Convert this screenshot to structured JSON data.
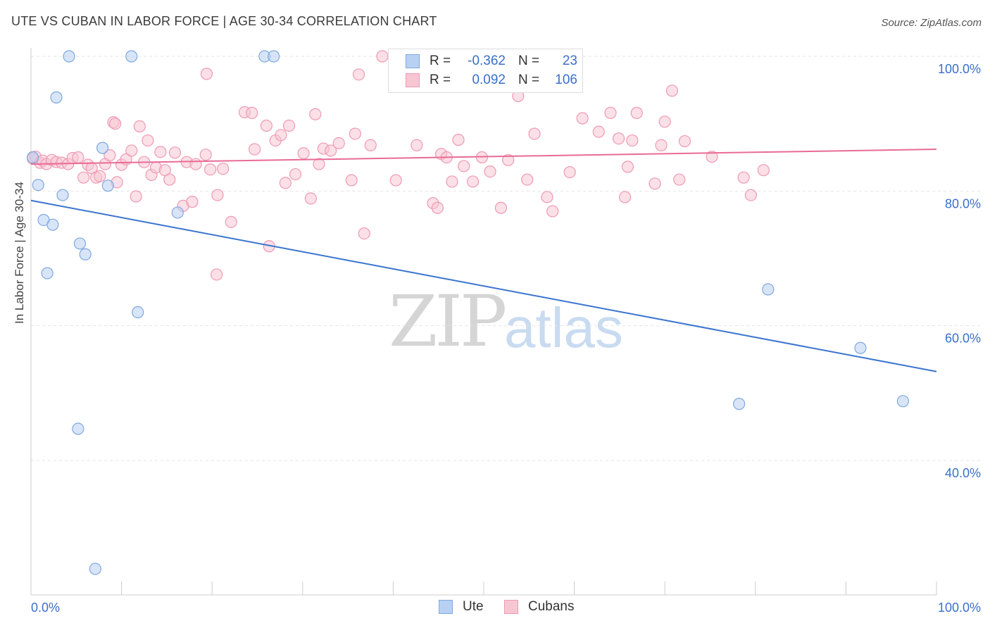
{
  "header": {
    "title": "UTE VS CUBAN IN LABOR FORCE | AGE 30-34 CORRELATION CHART",
    "source": "Source: ZipAtlas.com"
  },
  "watermark": {
    "zip": "ZIP",
    "atlas": "atlas"
  },
  "legend": {
    "r_label": "R =",
    "n_label": "N =",
    "series": [
      {
        "name": "Ute",
        "r": "-0.362",
        "n": "23"
      },
      {
        "name": "Cubans",
        "r": "0.092",
        "n": "106"
      }
    ]
  },
  "colors": {
    "ute_fill": "#b8d0f2",
    "ute_stroke": "#7fa8e0",
    "ute_line": "#3a74cf",
    "cuban_fill": "#f8c6d3",
    "cuban_stroke": "#ee9ab2",
    "cuban_line": "#e86b96",
    "tick_text": "#3a6fc9",
    "grid": "#e3e3e3"
  },
  "chart_data": {
    "type": "scatter",
    "title": "UTE VS CUBAN IN LABOR FORCE | AGE 30-34 CORRELATION CHART",
    "xlabel": "",
    "ylabel": "In Labor Force | Age 30-34",
    "xlim": [
      0,
      100
    ],
    "ylim": [
      20,
      104
    ],
    "x_tick_labels": [
      {
        "value": 0,
        "label": "0.0%"
      },
      {
        "value": 100,
        "label": "100.0%"
      }
    ],
    "y_tick_labels": [
      {
        "value": 100,
        "label": "100.0%"
      },
      {
        "value": 80,
        "label": "80.0%"
      },
      {
        "value": 60,
        "label": "60.0%"
      },
      {
        "value": 40,
        "label": "40.0%"
      }
    ],
    "series": [
      {
        "name": "Ute",
        "r": -0.362,
        "n": 23,
        "trend": {
          "x": [
            0,
            100
          ],
          "y": [
            78.6,
            53.2
          ]
        },
        "points": [
          [
            0.2,
            85.0
          ],
          [
            0.8,
            80.9
          ],
          [
            1.4,
            75.7
          ],
          [
            1.8,
            67.8
          ],
          [
            2.4,
            75.0
          ],
          [
            2.8,
            93.9
          ],
          [
            3.5,
            79.4
          ],
          [
            4.2,
            100.0
          ],
          [
            5.2,
            44.7
          ],
          [
            5.4,
            72.2
          ],
          [
            6.0,
            70.6
          ],
          [
            7.1,
            23.9
          ],
          [
            7.9,
            86.4
          ],
          [
            8.5,
            80.8
          ],
          [
            11.1,
            100.0
          ],
          [
            11.8,
            62.0
          ],
          [
            16.2,
            76.8
          ],
          [
            25.8,
            100.0
          ],
          [
            26.8,
            100.0
          ],
          [
            78.2,
            48.4
          ],
          [
            81.4,
            65.4
          ],
          [
            91.6,
            56.7
          ],
          [
            96.3,
            48.8
          ]
        ]
      },
      {
        "name": "Cubans",
        "r": 0.092,
        "n": 106,
        "trend": {
          "x": [
            0,
            100
          ],
          "y": [
            84.0,
            86.2
          ]
        },
        "points": [
          [
            0.2,
            84.8
          ],
          [
            0.5,
            85.1
          ],
          [
            1.0,
            84.2
          ],
          [
            1.3,
            84.5
          ],
          [
            1.7,
            84.0
          ],
          [
            2.3,
            84.6
          ],
          [
            2.8,
            84.3
          ],
          [
            3.4,
            84.2
          ],
          [
            4.1,
            84.0
          ],
          [
            4.6,
            84.9
          ],
          [
            5.2,
            85.0
          ],
          [
            5.8,
            82.0
          ],
          [
            6.3,
            83.9
          ],
          [
            6.7,
            83.4
          ],
          [
            7.2,
            82.0
          ],
          [
            7.6,
            82.2
          ],
          [
            8.2,
            84.0
          ],
          [
            8.7,
            85.3
          ],
          [
            9.1,
            90.2
          ],
          [
            9.5,
            81.3
          ],
          [
            10.0,
            83.9
          ],
          [
            10.5,
            84.7
          ],
          [
            11.1,
            86.0
          ],
          [
            11.6,
            79.2
          ],
          [
            12.0,
            89.6
          ],
          [
            12.5,
            84.3
          ],
          [
            12.9,
            87.5
          ],
          [
            13.3,
            82.4
          ],
          [
            13.8,
            83.5
          ],
          [
            14.3,
            85.8
          ],
          [
            14.8,
            83.1
          ],
          [
            15.3,
            81.7
          ],
          [
            15.9,
            85.7
          ],
          [
            16.8,
            77.8
          ],
          [
            17.2,
            84.3
          ],
          [
            17.8,
            78.4
          ],
          [
            18.2,
            84.0
          ],
          [
            19.3,
            85.4
          ],
          [
            19.8,
            83.2
          ],
          [
            20.6,
            79.4
          ],
          [
            21.2,
            83.3
          ],
          [
            22.1,
            75.4
          ],
          [
            23.6,
            91.7
          ],
          [
            24.4,
            91.6
          ],
          [
            24.7,
            86.2
          ],
          [
            26.0,
            89.7
          ],
          [
            27.0,
            87.5
          ],
          [
            27.6,
            88.3
          ],
          [
            28.1,
            81.2
          ],
          [
            28.5,
            89.7
          ],
          [
            29.2,
            82.5
          ],
          [
            30.1,
            85.6
          ],
          [
            30.9,
            78.9
          ],
          [
            31.8,
            84.0
          ],
          [
            32.3,
            86.3
          ],
          [
            33.1,
            86.0
          ],
          [
            34.0,
            87.1
          ],
          [
            35.4,
            81.6
          ],
          [
            35.8,
            88.5
          ],
          [
            36.8,
            73.7
          ],
          [
            37.5,
            86.8
          ],
          [
            38.8,
            100.0
          ],
          [
            40.3,
            81.6
          ],
          [
            42.6,
            86.8
          ],
          [
            44.4,
            78.2
          ],
          [
            44.9,
            77.5
          ],
          [
            45.3,
            85.5
          ],
          [
            45.9,
            85.0
          ],
          [
            46.5,
            81.4
          ],
          [
            47.2,
            87.6
          ],
          [
            47.8,
            83.7
          ],
          [
            48.8,
            81.4
          ],
          [
            49.8,
            85.0
          ],
          [
            50.7,
            82.9
          ],
          [
            51.9,
            77.5
          ],
          [
            52.7,
            84.6
          ],
          [
            53.8,
            94.1
          ],
          [
            54.8,
            81.7
          ],
          [
            55.6,
            88.5
          ],
          [
            57.0,
            79.1
          ],
          [
            57.6,
            77.0
          ],
          [
            59.5,
            82.8
          ],
          [
            60.9,
            90.8
          ],
          [
            62.7,
            88.8
          ],
          [
            64.0,
            91.6
          ],
          [
            64.9,
            87.8
          ],
          [
            65.6,
            79.1
          ],
          [
            65.9,
            83.6
          ],
          [
            66.4,
            87.5
          ],
          [
            66.9,
            91.6
          ],
          [
            68.9,
            81.1
          ],
          [
            69.6,
            86.8
          ],
          [
            70.0,
            90.3
          ],
          [
            70.8,
            94.9
          ],
          [
            71.6,
            81.7
          ],
          [
            72.2,
            87.4
          ],
          [
            75.2,
            85.1
          ],
          [
            78.7,
            82.0
          ],
          [
            79.5,
            79.4
          ],
          [
            80.9,
            83.1
          ],
          [
            26.3,
            71.8
          ],
          [
            20.5,
            67.6
          ],
          [
            9.3,
            90.0
          ],
          [
            19.4,
            97.4
          ],
          [
            31.4,
            91.4
          ],
          [
            36.2,
            97.3
          ]
        ]
      }
    ]
  }
}
